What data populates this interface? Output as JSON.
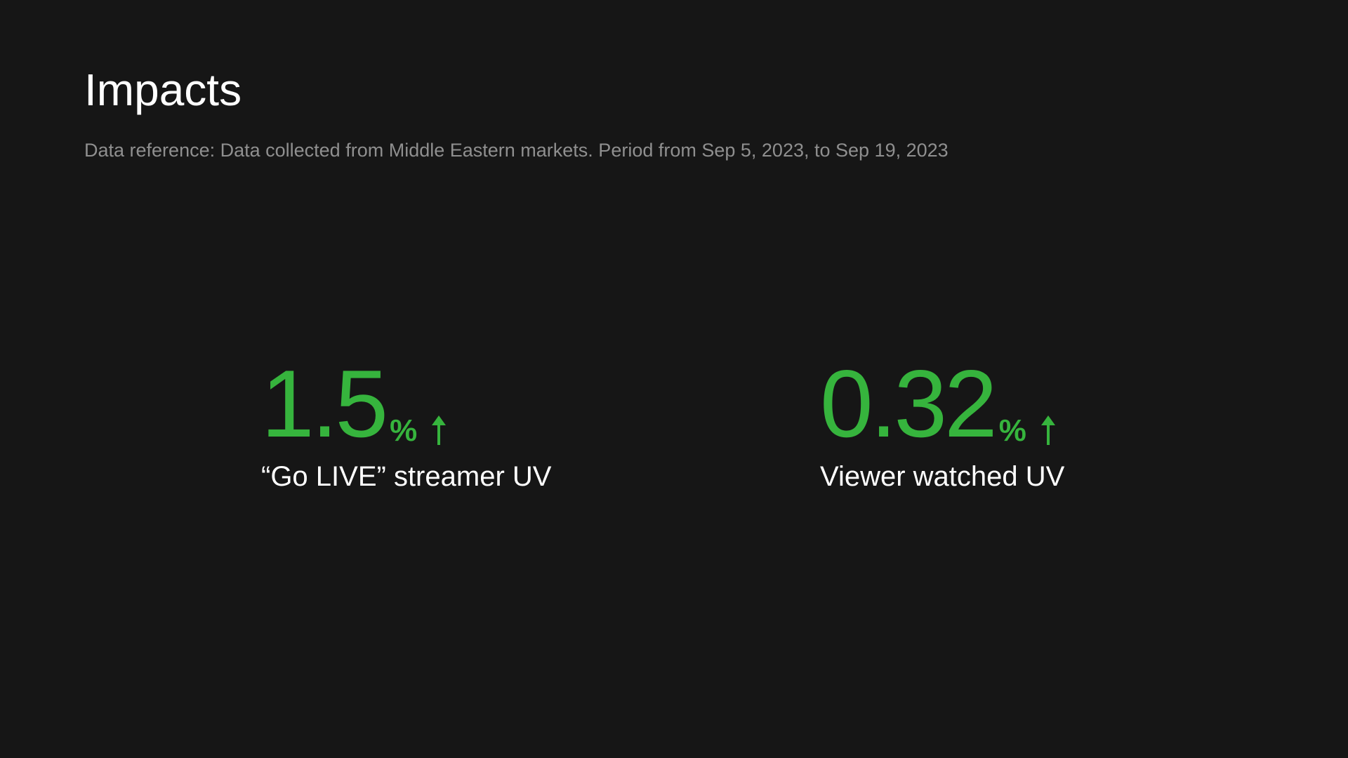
{
  "header": {
    "title": "Impacts",
    "subtitle": "Data reference: Data collected from Middle Eastern markets. Period from Sep 5, 2023, to Sep 19, 2023"
  },
  "metrics": [
    {
      "value": "1.5",
      "unit": "%",
      "trend_icon": "arrow-up-icon",
      "label": "“Go LIVE” streamer UV"
    },
    {
      "value": "0.32",
      "unit": "%",
      "trend_icon": "arrow-up-icon",
      "label": "Viewer watched UV"
    }
  ],
  "colors": {
    "background": "#161616",
    "accent": "#36b43d",
    "text": "#ffffff",
    "muted": "#8f8f8f"
  }
}
